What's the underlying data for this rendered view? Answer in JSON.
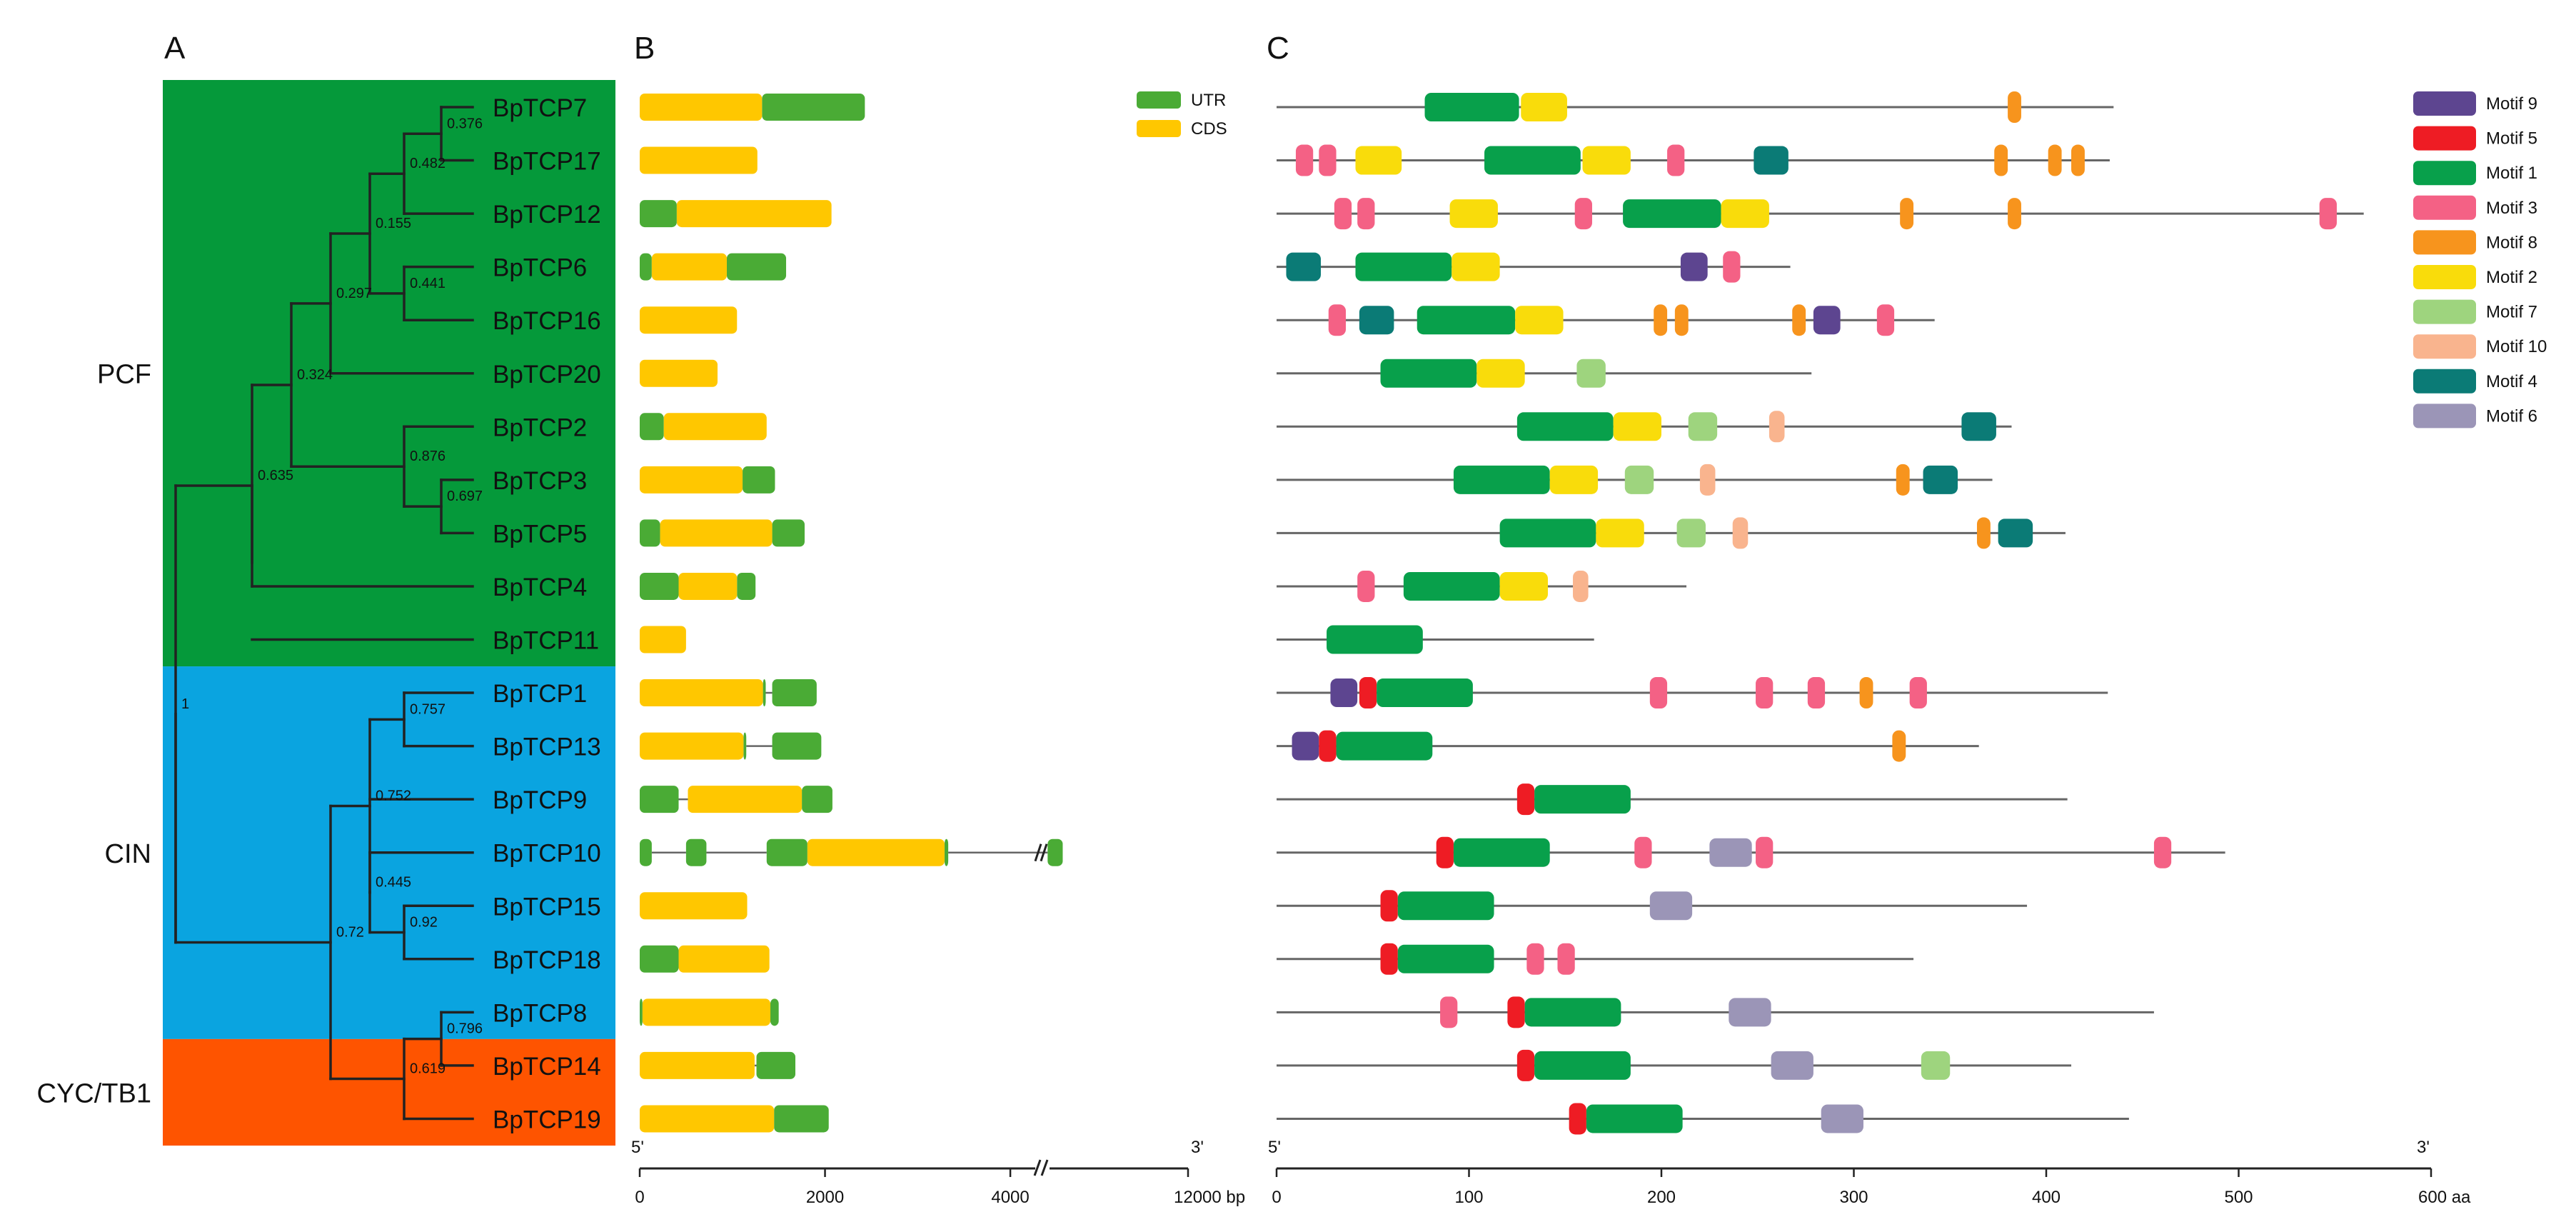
{
  "panels": {
    "a": "A",
    "b": "B",
    "c": "C"
  },
  "colors": {
    "pcf": "#05993a",
    "cin": "#0aa4e0",
    "cyc": "#fe5400",
    "utr": "#4aab35",
    "cds": "#ffc700",
    "line": "#222222",
    "thin": "#666666"
  },
  "tree": {
    "clades": [
      {
        "name": "PCF",
        "color": "#05993a",
        "from": 0,
        "to": 10
      },
      {
        "name": "CIN",
        "color": "#0aa4e0",
        "from": 11,
        "to": 17
      },
      {
        "name": "CYC/TB1",
        "color": "#fe5400",
        "from": 18,
        "to": 20
      }
    ],
    "nodes": [
      {
        "id": "n1",
        "label": "1"
      },
      {
        "id": "n635",
        "label": "0.635"
      },
      {
        "id": "n324",
        "label": "0.324"
      },
      {
        "id": "n297",
        "label": "0.297"
      },
      {
        "id": "n155",
        "label": "0.155"
      },
      {
        "id": "n482",
        "label": "0.482"
      },
      {
        "id": "n376",
        "label": "0.376"
      },
      {
        "id": "n441",
        "label": "0.441"
      },
      {
        "id": "n876",
        "label": "0.876"
      },
      {
        "id": "n697",
        "label": "0.697"
      },
      {
        "id": "n72",
        "label": "0.72"
      },
      {
        "id": "n752",
        "label": "0.752"
      },
      {
        "id": "n757",
        "label": "0.757"
      },
      {
        "id": "n445",
        "label": "0.445"
      },
      {
        "id": "n92",
        "label": "0.92"
      },
      {
        "id": "n619",
        "label": "0.619"
      },
      {
        "id": "n796",
        "label": "0.796"
      }
    ]
  },
  "legend_b": [
    {
      "key": "utr",
      "label": "UTR",
      "color": "#4aab35"
    },
    {
      "key": "cds",
      "label": "CDS",
      "color": "#ffc700"
    }
  ],
  "legend_c": [
    {
      "label": "Motif 9",
      "color": "#5d4590"
    },
    {
      "label": "Motif 5",
      "color": "#ee1c24"
    },
    {
      "label": "Motif 1",
      "color": "#08a04b"
    },
    {
      "label": "Motif 3",
      "color": "#f46185"
    },
    {
      "label": "Motif 8",
      "color": "#f7941d"
    },
    {
      "label": "Motif 2",
      "color": "#f9dc0b"
    },
    {
      "label": "Motif 7",
      "color": "#9ed47e"
    },
    {
      "label": "Motif 10",
      "color": "#f9b48e"
    },
    {
      "label": "Motif 4",
      "color": "#0b7b76"
    },
    {
      "label": "Motif 6",
      "color": "#9b95b7"
    }
  ],
  "gene_axis": {
    "ticks": [
      "0",
      "2000",
      "4000",
      "12000 bp"
    ],
    "tick_values": [
      0,
      2000,
      4000,
      12000
    ],
    "ends": [
      "5'",
      "3'"
    ],
    "break_after": 4300,
    "break_resume": 4600,
    "break_before_mark": 4300
  },
  "protein_axis": {
    "ticks": [
      "0",
      "100",
      "200",
      "300",
      "400",
      "500",
      "600 aa"
    ],
    "tick_values": [
      0,
      100,
      200,
      300,
      400,
      500,
      600
    ],
    "ends": [
      "5'",
      "3'"
    ]
  },
  "genes": [
    {
      "name": "BpTCP7",
      "utr": [
        [
          1320,
          2430
        ]
      ],
      "cds": [
        [
          0,
          1320
        ]
      ],
      "intron": []
    },
    {
      "name": "BpTCP17",
      "utr": [],
      "cds": [
        [
          0,
          1270
        ]
      ],
      "intron": []
    },
    {
      "name": "BpTCP12",
      "utr": [
        [
          0,
          400
        ]
      ],
      "cds": [
        [
          400,
          2070
        ]
      ],
      "intron": []
    },
    {
      "name": "BpTCP6",
      "utr": [
        [
          0,
          130
        ],
        [
          940,
          1580
        ]
      ],
      "cds": [
        [
          130,
          940
        ]
      ],
      "intron": []
    },
    {
      "name": "BpTCP16",
      "utr": [],
      "cds": [
        [
          0,
          1050
        ]
      ],
      "intron": []
    },
    {
      "name": "BpTCP20",
      "utr": [],
      "cds": [
        [
          0,
          840
        ]
      ],
      "intron": []
    },
    {
      "name": "BpTCP2",
      "utr": [
        [
          0,
          260
        ]
      ],
      "cds": [
        [
          260,
          1370
        ]
      ],
      "intron": []
    },
    {
      "name": "BpTCP3",
      "utr": [
        [
          1110,
          1460
        ]
      ],
      "cds": [
        [
          0,
          1110
        ]
      ],
      "intron": []
    },
    {
      "name": "BpTCP5",
      "utr": [
        [
          0,
          220
        ],
        [
          1430,
          1780
        ]
      ],
      "cds": [
        [
          220,
          1430
        ]
      ],
      "intron": []
    },
    {
      "name": "BpTCP4",
      "utr": [
        [
          0,
          420
        ],
        [
          1050,
          1250
        ]
      ],
      "cds": [
        [
          420,
          1050
        ]
      ],
      "intron": []
    },
    {
      "name": "BpTCP11",
      "utr": [],
      "cds": [
        [
          0,
          500
        ]
      ],
      "intron": []
    },
    {
      "name": "BpTCP1",
      "utr": [
        [
          1330,
          1360
        ],
        [
          1430,
          1910
        ]
      ],
      "cds": [
        [
          0,
          1330
        ]
      ],
      "intron": [
        [
          1360,
          1430
        ]
      ]
    },
    {
      "name": "BpTCP13",
      "utr": [
        [
          1120,
          1150
        ],
        [
          1430,
          1960
        ]
      ],
      "cds": [
        [
          0,
          1120
        ]
      ],
      "intron": [
        [
          1150,
          1430
        ]
      ]
    },
    {
      "name": "BpTCP9",
      "utr": [
        [
          0,
          420
        ],
        [
          1750,
          2080
        ]
      ],
      "cds": [
        [
          520,
          1750
        ]
      ],
      "intron": [
        [
          420,
          520
        ]
      ]
    },
    {
      "name": "BpTCP10",
      "utr": [
        [
          0,
          130
        ],
        [
          500,
          720
        ],
        [
          1370,
          1810
        ],
        [
          3290,
          3330
        ],
        [
          4650,
          5440
        ]
      ],
      "cds": [
        [
          1810,
          3290
        ]
      ],
      "intron": [
        [
          130,
          500
        ],
        [
          720,
          1370
        ],
        [
          3330,
          4650
        ]
      ]
    },
    {
      "name": "BpTCP15",
      "utr": [],
      "cds": [
        [
          0,
          1160
        ]
      ],
      "intron": []
    },
    {
      "name": "BpTCP18",
      "utr": [
        [
          0,
          420
        ]
      ],
      "cds": [
        [
          420,
          1400
        ]
      ],
      "intron": []
    },
    {
      "name": "BpTCP8",
      "utr": [
        [
          0,
          30
        ],
        [
          1410,
          1500
        ]
      ],
      "cds": [
        [
          30,
          1410
        ]
      ],
      "intron": []
    },
    {
      "name": "BpTCP14",
      "utr": [
        [
          1260,
          1680
        ]
      ],
      "cds": [
        [
          0,
          1240
        ]
      ],
      "intron": [
        [
          1240,
          1260
        ]
      ]
    },
    {
      "name": "BpTCP19",
      "utr": [
        [
          1450,
          2040
        ]
      ],
      "cds": [
        [
          0,
          1450
        ]
      ],
      "intron": []
    }
  ],
  "proteins": [
    {
      "name": "BpTCP7",
      "length": 435,
      "motifs": [
        [
          1,
          77,
          126
        ],
        [
          2,
          127,
          151
        ],
        [
          8,
          380,
          387
        ]
      ]
    },
    {
      "name": "BpTCP17",
      "length": 433,
      "motifs": [
        [
          3,
          10,
          19
        ],
        [
          3,
          22,
          31
        ],
        [
          2,
          41,
          65
        ],
        [
          1,
          108,
          158
        ],
        [
          2,
          159,
          184
        ],
        [
          3,
          203,
          212
        ],
        [
          4,
          248,
          266
        ],
        [
          8,
          373,
          380
        ],
        [
          8,
          401,
          408
        ],
        [
          8,
          413,
          420
        ]
      ]
    },
    {
      "name": "BpTCP12",
      "length": 565,
      "motifs": [
        [
          3,
          30,
          39
        ],
        [
          3,
          42,
          51
        ],
        [
          2,
          90,
          115
        ],
        [
          3,
          155,
          164
        ],
        [
          1,
          180,
          231
        ],
        [
          2,
          231,
          256
        ],
        [
          8,
          324,
          331
        ],
        [
          8,
          380,
          387
        ],
        [
          3,
          542,
          551
        ]
      ]
    },
    {
      "name": "BpTCP6",
      "length": 267,
      "motifs": [
        [
          4,
          5,
          23
        ],
        [
          1,
          41,
          91
        ],
        [
          2,
          91,
          116
        ],
        [
          9,
          210,
          224
        ],
        [
          3,
          232,
          241
        ]
      ]
    },
    {
      "name": "BpTCP16",
      "length": 342,
      "motifs": [
        [
          3,
          27,
          36
        ],
        [
          4,
          43,
          61
        ],
        [
          1,
          73,
          124
        ],
        [
          2,
          124,
          149
        ],
        [
          8,
          196,
          203
        ],
        [
          8,
          207,
          214
        ],
        [
          8,
          268,
          275
        ],
        [
          9,
          279,
          293
        ],
        [
          3,
          312,
          321
        ]
      ]
    },
    {
      "name": "BpTCP20",
      "length": 278,
      "motifs": [
        [
          1,
          54,
          104
        ],
        [
          2,
          104,
          129
        ],
        [
          7,
          156,
          171
        ]
      ]
    },
    {
      "name": "BpTCP2",
      "length": 382,
      "motifs": [
        [
          1,
          125,
          175
        ],
        [
          2,
          175,
          200
        ],
        [
          7,
          214,
          229
        ],
        [
          10,
          256,
          264
        ],
        [
          4,
          356,
          374
        ]
      ]
    },
    {
      "name": "BpTCP3",
      "length": 372,
      "motifs": [
        [
          1,
          92,
          142
        ],
        [
          2,
          142,
          167
        ],
        [
          7,
          181,
          196
        ],
        [
          10,
          220,
          228
        ],
        [
          8,
          322,
          329
        ],
        [
          4,
          336,
          354
        ]
      ]
    },
    {
      "name": "BpTCP5",
      "length": 410,
      "motifs": [
        [
          1,
          116,
          166
        ],
        [
          2,
          166,
          191
        ],
        [
          7,
          208,
          223
        ],
        [
          10,
          237,
          245
        ],
        [
          8,
          364,
          371
        ],
        [
          4,
          375,
          393
        ]
      ]
    },
    {
      "name": "BpTCP4",
      "length": 213,
      "motifs": [
        [
          3,
          42,
          51
        ],
        [
          1,
          66,
          116
        ],
        [
          2,
          116,
          141
        ],
        [
          10,
          154,
          162
        ]
      ]
    },
    {
      "name": "BpTCP11",
      "length": 165,
      "motifs": [
        [
          1,
          26,
          76
        ]
      ]
    },
    {
      "name": "BpTCP1",
      "length": 432,
      "motifs": [
        [
          9,
          28,
          42
        ],
        [
          5,
          43,
          52
        ],
        [
          1,
          52,
          102
        ],
        [
          3,
          194,
          203
        ],
        [
          3,
          249,
          258
        ],
        [
          3,
          276,
          285
        ],
        [
          8,
          303,
          310
        ],
        [
          3,
          329,
          338
        ]
      ]
    },
    {
      "name": "BpTCP13",
      "length": 365,
      "motifs": [
        [
          9,
          8,
          22
        ],
        [
          5,
          22,
          31
        ],
        [
          1,
          31,
          81
        ],
        [
          8,
          320,
          327
        ]
      ]
    },
    {
      "name": "BpTCP9",
      "length": 411,
      "motifs": [
        [
          5,
          125,
          134
        ],
        [
          1,
          134,
          184
        ]
      ]
    },
    {
      "name": "BpTCP10",
      "length": 493,
      "motifs": [
        [
          5,
          83,
          92
        ],
        [
          1,
          92,
          142
        ],
        [
          3,
          186,
          195
        ],
        [
          6,
          225,
          247
        ],
        [
          3,
          249,
          258
        ],
        [
          3,
          456,
          465
        ]
      ]
    },
    {
      "name": "BpTCP15",
      "length": 390,
      "motifs": [
        [
          5,
          54,
          63
        ],
        [
          1,
          63,
          113
        ],
        [
          6,
          194,
          216
        ]
      ]
    },
    {
      "name": "BpTCP18",
      "length": 331,
      "motifs": [
        [
          5,
          54,
          63
        ],
        [
          1,
          63,
          113
        ],
        [
          3,
          130,
          139
        ],
        [
          3,
          146,
          155
        ]
      ]
    },
    {
      "name": "BpTCP8",
      "length": 456,
      "motifs": [
        [
          3,
          85,
          94
        ],
        [
          5,
          120,
          129
        ],
        [
          1,
          129,
          179
        ],
        [
          6,
          235,
          257
        ]
      ]
    },
    {
      "name": "BpTCP14",
      "length": 413,
      "motifs": [
        [
          5,
          125,
          134
        ],
        [
          1,
          134,
          184
        ],
        [
          6,
          257,
          279
        ],
        [
          7,
          335,
          350
        ]
      ]
    },
    {
      "name": "BpTCP19",
      "length": 443,
      "motifs": [
        [
          5,
          152,
          161
        ],
        [
          1,
          161,
          211
        ],
        [
          6,
          283,
          305
        ]
      ]
    }
  ]
}
